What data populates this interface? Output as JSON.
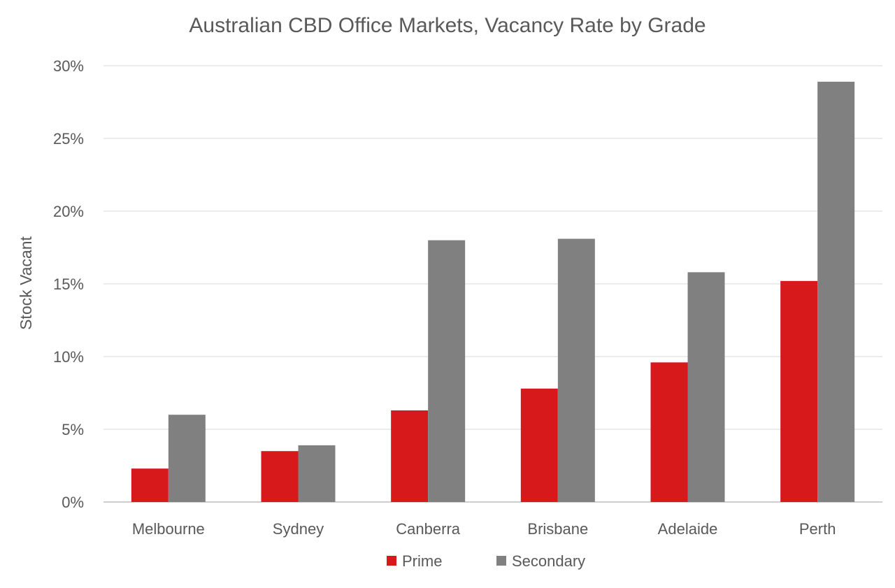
{
  "chart_data": {
    "type": "bar",
    "title": "Australian CBD Office Markets, Vacancy Rate by Grade",
    "xlabel": "",
    "ylabel": "Stock Vacant",
    "categories": [
      "Melbourne",
      "Sydney",
      "Canberra",
      "Brisbane",
      "Adelaide",
      "Perth"
    ],
    "series": [
      {
        "name": "Prime",
        "color": "#d7191c",
        "values": [
          2.3,
          3.5,
          6.3,
          7.8,
          9.6,
          15.2
        ]
      },
      {
        "name": "Secondary",
        "color": "#808080",
        "values": [
          6.0,
          3.9,
          18.0,
          18.1,
          15.8,
          28.9
        ]
      }
    ],
    "ylim": [
      0,
      30
    ],
    "yticks": [
      0,
      5,
      10,
      15,
      20,
      25,
      30
    ],
    "ytick_labels": [
      "0%",
      "5%",
      "10%",
      "15%",
      "20%",
      "25%",
      "30%"
    ],
    "grid": true,
    "legend": "bottom-center"
  }
}
